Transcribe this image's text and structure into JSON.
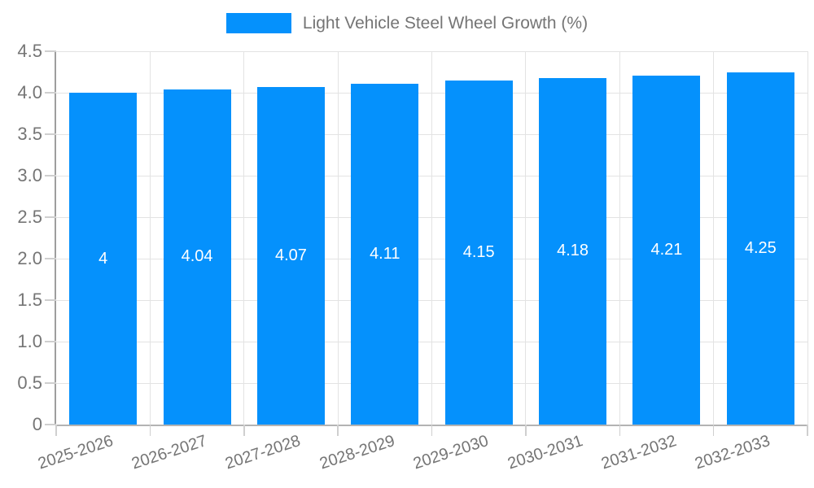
{
  "legend": {
    "label": "Light Vehicle Steel Wheel Growth (%)"
  },
  "colors": {
    "bar": "#0591fc",
    "bar_label": "#ffffff",
    "axis_text": "#757575",
    "grid": "#e3e3e3",
    "axis_line_y": "#9e9e9e",
    "axis_line_x": "#b3b3b3",
    "tick": "#cfcfcf"
  },
  "chart_data": {
    "type": "bar",
    "title": "Light Vehicle Steel Wheel Growth (%)",
    "categories": [
      "2025-2026",
      "2026-2027",
      "2027-2028",
      "2028-2029",
      "2029-2030",
      "2030-2031",
      "2031-2032",
      "2032-2033"
    ],
    "values": [
      4,
      4.04,
      4.07,
      4.11,
      4.15,
      4.18,
      4.21,
      4.25
    ],
    "bar_labels": [
      "4",
      "4.04",
      "4.07",
      "4.11",
      "4.15",
      "4.18",
      "4.21",
      "4.25"
    ],
    "xlabel": "",
    "ylabel": "",
    "ylim": [
      0,
      4.5
    ],
    "y_ticks": [
      0,
      0.5,
      1,
      1.5,
      2,
      2.5,
      3,
      3.5,
      4,
      4.5
    ],
    "y_tick_labels": [
      "0",
      "0.5",
      "1.0",
      "1.5",
      "2.0",
      "2.5",
      "3.0",
      "3.5",
      "4.0",
      "4.5"
    ],
    "grid": true,
    "legend_position": "top",
    "x_label_rotation_deg": -18
  }
}
